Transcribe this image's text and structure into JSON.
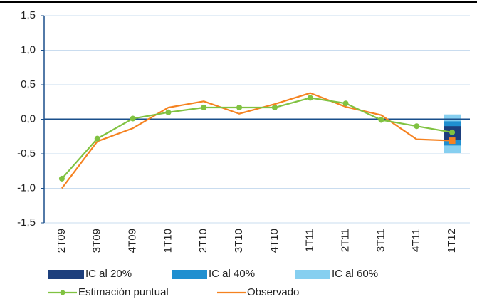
{
  "chart_data": {
    "type": "line",
    "categories": [
      "2T09",
      "3T09",
      "4T09",
      "1T10",
      "2T10",
      "3T10",
      "4T10",
      "1T11",
      "2T11",
      "3T11",
      "4T11",
      "1T12"
    ],
    "ylim": [
      -1.5,
      1.5
    ],
    "yticks": [
      {
        "value": -1.5,
        "label": "-1,5"
      },
      {
        "value": -1.0,
        "label": "-1,0"
      },
      {
        "value": -0.5,
        "label": "-0,5"
      },
      {
        "value": 0,
        "label": "0,0"
      },
      {
        "value": 0.5,
        "label": "0,5"
      },
      {
        "value": 1.0,
        "label": "1,0"
      },
      {
        "value": 1.5,
        "label": "1,5"
      }
    ],
    "grid": true,
    "bands": [
      {
        "name": "IC al 60%",
        "color": "#86cff0",
        "low": [
          null,
          null,
          null,
          null,
          null,
          null,
          null,
          null,
          null,
          null,
          null,
          -0.49
        ],
        "high": [
          null,
          null,
          null,
          null,
          null,
          null,
          null,
          null,
          null,
          null,
          null,
          0.07
        ]
      },
      {
        "name": "IC al 40%",
        "color": "#1f8fd0",
        "low": [
          null,
          null,
          null,
          null,
          null,
          null,
          null,
          null,
          null,
          null,
          null,
          -0.38
        ],
        "high": [
          null,
          null,
          null,
          null,
          null,
          null,
          null,
          null,
          null,
          null,
          null,
          -0.03
        ]
      },
      {
        "name": "IC al 20%",
        "color": "#1d3f7d",
        "low": [
          null,
          null,
          null,
          null,
          null,
          null,
          null,
          null,
          null,
          null,
          null,
          -0.3
        ],
        "high": [
          null,
          null,
          null,
          null,
          null,
          null,
          null,
          null,
          null,
          null,
          null,
          -0.1
        ]
      }
    ],
    "series": [
      {
        "name": "Estimación puntual",
        "color": "#80c241",
        "values": [
          -0.86,
          -0.28,
          0.01,
          0.1,
          0.17,
          0.17,
          0.17,
          0.31,
          0.23,
          -0.01,
          -0.1,
          -0.19
        ]
      },
      {
        "name": "Observado",
        "color": "#f58220",
        "values": [
          -1.0,
          -0.32,
          -0.13,
          0.17,
          0.26,
          0.08,
          0.22,
          0.38,
          0.18,
          0.06,
          -0.29,
          -0.31
        ]
      }
    ]
  }
}
